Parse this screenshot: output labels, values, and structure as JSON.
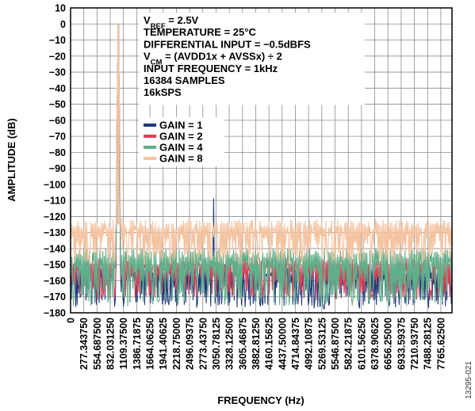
{
  "chart_data": {
    "type": "line",
    "title": "",
    "xlabel": "FREQUENCY (Hz)",
    "ylabel": "AMPLITUDE (dB)",
    "xlim": [
      0,
      8000
    ],
    "ylim": [
      -180,
      10
    ],
    "grid": true,
    "y_ticks": [
      "10",
      "0",
      "−10",
      "−20",
      "−30",
      "−40",
      "−50",
      "−60",
      "−70",
      "−80",
      "−90",
      "−100",
      "−110",
      "−120",
      "−130",
      "−140",
      "−150",
      "−160",
      "−170",
      "−180"
    ],
    "y_tick_values": [
      10,
      0,
      -10,
      -20,
      -30,
      -40,
      -50,
      -60,
      -70,
      -80,
      -90,
      -100,
      -110,
      -120,
      -130,
      -140,
      -150,
      -160,
      -170,
      -180
    ],
    "x_ticks": [
      "0",
      "277.343750",
      "554.687500",
      "832.031250",
      "1109.37500",
      "1386.71875",
      "1664.06250",
      "1941.40625",
      "2218.75000",
      "2496.09375",
      "2773.43750",
      "3050.78125",
      "3328.12500",
      "3605.46875",
      "3882.81250",
      "4160.15625",
      "4437.50000",
      "4714.84375",
      "4992.10875",
      "5269.53125",
      "5546.87500",
      "5824.21875",
      "6101.56250",
      "6378.90625",
      "6656.25000",
      "6933.59375",
      "7210.93750",
      "7488.28125",
      "7765.62500"
    ],
    "x_tick_values": [
      0,
      277.34375,
      554.6875,
      832.03125,
      1109.375,
      1386.71875,
      1664.0625,
      1941.40625,
      2218.75,
      2496.09375,
      2773.4375,
      3050.78125,
      3328.125,
      3605.46875,
      3882.8125,
      4160.15625,
      4437.5,
      4714.84375,
      4992.10875,
      5269.53125,
      5546.875,
      5824.21875,
      6101.5625,
      6378.90625,
      6656.25,
      6933.59375,
      7210.9375,
      7488.28125,
      7765.625
    ],
    "annotations": [
      {
        "pre": "V",
        "sub": "REF",
        "post": " = 2.5V"
      },
      {
        "pre": "TEMPERATURE = 25°C",
        "sub": "",
        "post": ""
      },
      {
        "pre": "DIFFERENTIAL INPUT = −0.5dBFS",
        "sub": "",
        "post": ""
      },
      {
        "pre": "V",
        "sub": "CM",
        "post": " = (AVDD1x + AVSSx) ÷ 2"
      },
      {
        "pre": "INPUT FREQUENCY = 1kHz",
        "sub": "",
        "post": ""
      },
      {
        "pre": "16384 SAMPLES",
        "sub": "",
        "post": ""
      },
      {
        "pre": "16kSPS",
        "sub": "",
        "post": ""
      }
    ],
    "series": [
      {
        "name": "GAIN = 1",
        "color": "#1f3a7a",
        "fundamental_db": 0,
        "harmonics": [
          [
            3000,
            -109
          ]
        ],
        "noise_floor_db": [
          -150,
          -178
        ]
      },
      {
        "name": "GAIN = 2",
        "color": "#e0405a",
        "fundamental_db": 0,
        "harmonics": [],
        "noise_floor_db": [
          -145,
          -172
        ]
      },
      {
        "name": "GAIN = 4",
        "color": "#5fb08a",
        "fundamental_db": 0,
        "harmonics": [],
        "noise_floor_db": [
          -140,
          -176
        ]
      },
      {
        "name": "GAIN = 8",
        "color": "#f4c3a0",
        "fundamental_db": 0,
        "harmonics": [
          [
            2000,
            -125
          ]
        ],
        "noise_floor_db": [
          -122,
          -150
        ]
      }
    ],
    "fundamental_hz": 1000,
    "figure_id": "13295-021"
  }
}
